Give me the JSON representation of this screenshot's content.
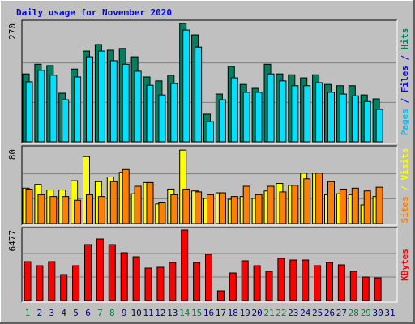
{
  "title": "Daily usage for November 2020",
  "chart_data": [
    {
      "type": "bar",
      "side_label": [
        {
          "text": "Pages",
          "color": "#00c0ff"
        },
        {
          "text": " / ",
          "color": "#0000ff"
        },
        {
          "text": "Files",
          "color": "#0000ff"
        },
        {
          "text": " / ",
          "color": "#0000ff"
        },
        {
          "text": "Hits",
          "color": "#008060"
        }
      ],
      "ylim": [
        0,
        270
      ],
      "yticks": [
        270
      ],
      "series": [
        {
          "color": "#008060",
          "values": [
            155,
            177,
            174,
            111,
            166,
            207,
            222,
            209,
            213,
            194,
            148,
            139,
            152,
            270,
            244,
            63,
            109,
            172,
            131,
            122,
            177,
            155,
            153,
            146,
            153,
            131,
            128,
            128,
            107,
            98,
            null
          ]
        },
        {
          "color": "#00e0ff",
          "values": [
            137,
            163,
            152,
            96,
            148,
            194,
            207,
            185,
            177,
            161,
            129,
            107,
            133,
            255,
            216,
            46,
            96,
            146,
            113,
            113,
            155,
            139,
            128,
            128,
            135,
            113,
            109,
            105,
            92,
            74,
            null
          ]
        }
      ]
    },
    {
      "type": "bar",
      "side_label": [
        {
          "text": "Sites",
          "color": "#ff8000"
        },
        {
          "text": " / ",
          "color": "#ffff00"
        },
        {
          "text": "Visits",
          "color": "#ffff00"
        }
      ],
      "ylim": [
        0,
        80
      ],
      "yticks": [
        80
      ],
      "series": [
        {
          "color": "#ffff00",
          "values": [
            38,
            42,
            36,
            36,
            46,
            72,
            45,
            50,
            55,
            32,
            44,
            21,
            37,
            79,
            35,
            27,
            33,
            26,
            29,
            27,
            35,
            43,
            41,
            54,
            54,
            31,
            32,
            31,
            20,
            29,
            null
          ]
        },
        {
          "color": "#ff8000",
          "values": [
            37,
            31,
            29,
            29,
            25,
            31,
            29,
            45,
            58,
            40,
            44,
            23,
            31,
            37,
            34,
            31,
            33,
            29,
            40,
            31,
            40,
            34,
            41,
            48,
            54,
            45,
            37,
            38,
            35,
            39,
            null
          ]
        }
      ]
    },
    {
      "type": "bar",
      "side_label": [
        {
          "text": "KBytes",
          "color": "#ff0000"
        }
      ],
      "ylim": [
        0,
        6477
      ],
      "yticks": [
        6477
      ],
      "series": [
        {
          "color": "#ff0000",
          "values": [
            3572,
            3200,
            3572,
            2381,
            3200,
            5135,
            5656,
            5135,
            4391,
            4019,
            2977,
            3051,
            3498,
            6477,
            3498,
            4242,
            893,
            2530,
            3647,
            3200,
            2679,
            3870,
            3721,
            3721,
            3200,
            3498,
            3275,
            2679,
            2158,
            2084,
            null
          ]
        }
      ],
      "categories": [
        "1",
        "2",
        "3",
        "4",
        "5",
        "6",
        "7",
        "8",
        "9",
        "10",
        "11",
        "12",
        "13",
        "14",
        "15",
        "16",
        "17",
        "18",
        "19",
        "20",
        "21",
        "22",
        "23",
        "24",
        "25",
        "26",
        "27",
        "28",
        "29",
        "30",
        "31"
      ],
      "category_colors": [
        "#008040",
        "#000080",
        "#000080",
        "#000080",
        "#000080",
        "#000080",
        "#008040",
        "#008040",
        "#000080",
        "#000080",
        "#000080",
        "#000080",
        "#000080",
        "#008040",
        "#008040",
        "#000080",
        "#000080",
        "#000080",
        "#000080",
        "#000080",
        "#008040",
        "#008040",
        "#000080",
        "#000080",
        "#000080",
        "#000080",
        "#000080",
        "#008040",
        "#008040",
        "#000080",
        "#000080"
      ]
    }
  ]
}
